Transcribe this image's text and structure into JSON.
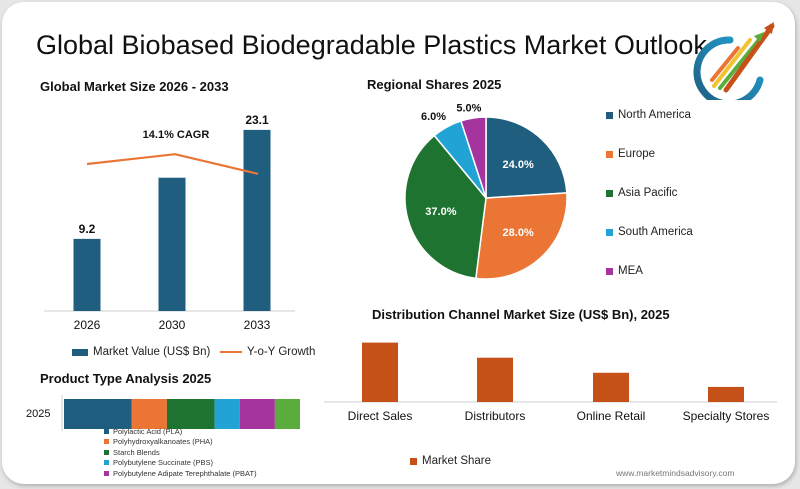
{
  "page": {
    "title": "Global Biobased Biodegradable Plastics Market Outlook",
    "footer": "www.marketmindsadvisory.com"
  },
  "colors": {
    "dark_blue": "#1f5e7f",
    "orange": "#ea7535",
    "green": "#1f7331",
    "light_blue": "#21a3d6",
    "purple": "#a6349e",
    "light_green": "#5aad3c",
    "rust": "#c65118"
  },
  "chart_data": [
    {
      "id": "market_size",
      "type": "bar",
      "title": "Global Market Size 2026 - 2033",
      "categories": [
        "2026",
        "2030",
        "2033"
      ],
      "series": [
        {
          "name": "Market Value (US$ Bn)",
          "values": [
            9.2,
            17.0,
            23.1
          ],
          "labels": [
            "9.2",
            "",
            "23.1"
          ],
          "color": "#1f5e7f"
        },
        {
          "name": "Y-o-Y Growth",
          "type": "line",
          "values": [
            75,
            80,
            70
          ],
          "color": "#ea7535"
        }
      ],
      "annotation": "14.1% CAGR",
      "ylim": [
        0,
        25
      ],
      "grid": false,
      "legend_position": "bottom"
    },
    {
      "id": "regional_shares",
      "type": "pie",
      "title": "Regional Shares 2025",
      "slices": [
        {
          "name": "North America",
          "value": 24.0,
          "label": "24.0%",
          "color": "#1f5e7f"
        },
        {
          "name": "Europe",
          "value": 28.0,
          "label": "28.0%",
          "color": "#ea7535"
        },
        {
          "name": "Asia Pacific",
          "value": 37.0,
          "label": "37.0%",
          "color": "#1f7331"
        },
        {
          "name": "South America",
          "value": 6.0,
          "label": "6.0%",
          "color": "#21a3d6"
        },
        {
          "name": "MEA",
          "value": 5.0,
          "label": "5.0%",
          "color": "#a6349e"
        }
      ],
      "legend_position": "right"
    },
    {
      "id": "product_type",
      "type": "bar",
      "orientation": "horizontal-stacked",
      "title": "Product Type Analysis 2025",
      "categories": [
        "2025"
      ],
      "series": [
        {
          "name": "Polylactic Acid (PLA)",
          "values": [
            27
          ],
          "color": "#1f5e7f"
        },
        {
          "name": "Polyhydroxyalkanoates (PHA)",
          "values": [
            14
          ],
          "color": "#ea7535"
        },
        {
          "name": "Starch Blends",
          "values": [
            19
          ],
          "color": "#1f7331"
        },
        {
          "name": "Polybutylene Succinate (PBS)",
          "values": [
            10
          ],
          "color": "#21a3d6"
        },
        {
          "name": "Polybutylene Adipate Terephthalate (PBAT)",
          "values": [
            14
          ],
          "color": "#a6349e"
        },
        {
          "name": "",
          "values": [
            10
          ],
          "color": "#5aad3c"
        }
      ],
      "legend_position": "bottom"
    },
    {
      "id": "distribution_channel",
      "type": "bar",
      "title": "Distribution Channel Market Size (US$ Bn), 2025",
      "categories": [
        "Direct Sales",
        "Distributors",
        "Online Retail",
        "Specialty Stores"
      ],
      "series": [
        {
          "name": "Market Share",
          "values": [
            6.3,
            4.7,
            3.1,
            1.6
          ],
          "color": "#c65118"
        }
      ],
      "ylim": [
        0,
        7
      ],
      "grid": false,
      "legend_position": "bottom"
    }
  ]
}
